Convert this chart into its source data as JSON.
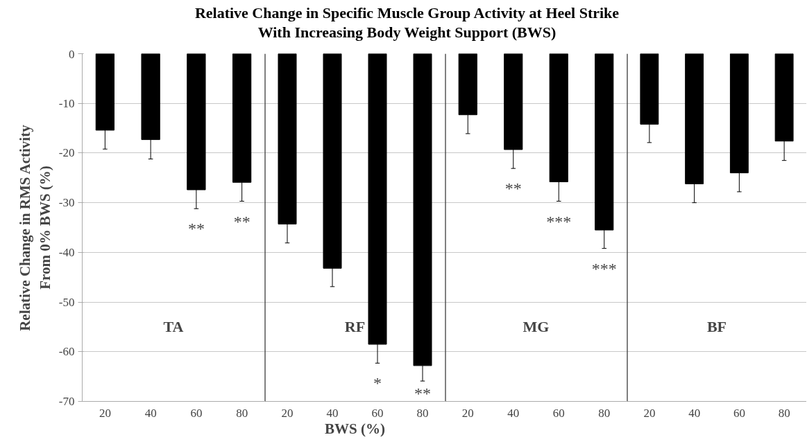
{
  "chart_data": [
    {
      "type": "bar",
      "title": "Relative Change in Specific Muscle Group Activity at Heel Strike\nWith Increasing Body Weight Support (BWS)",
      "ylabel": "Relative Change in RMS Activity\nFrom 0% BWS (%)",
      "categories": [
        "20",
        "40",
        "60",
        "80"
      ],
      "series": [
        {
          "color": "#000000",
          "values": [
            -15.4,
            -17.3,
            -27.4,
            -25.9
          ],
          "value_labels": [
            null,
            null,
            "**",
            "**"
          ],
          "errors": [
            [
              -19.2,
              -15.4
            ],
            [
              -21.2,
              -17.3
            ],
            [
              -31.2,
              -27.4
            ],
            [
              -29.7,
              -25.9
            ]
          ]
        }
      ],
      "ylim": [
        -70,
        0
      ],
      "yticks": [
        0,
        -10,
        -20,
        -30,
        -40,
        -50,
        -60,
        -70
      ],
      "grid": "y",
      "annotations": [
        "TA"
      ]
    },
    {
      "type": "bar",
      "categories": [
        "20",
        "40",
        "60",
        "80"
      ],
      "xlabel": "BWS (%)",
      "series": [
        {
          "color": "#000000",
          "values": [
            -34.3,
            -43.2,
            -58.5,
            -62.8
          ],
          "value_labels": [
            null,
            null,
            "*",
            "**"
          ],
          "errors": [
            [
              -38.1,
              -34.3
            ],
            [
              -46.9,
              -43.2
            ],
            [
              -62.3,
              -58.5
            ],
            [
              -65.9,
              -62.8
            ]
          ]
        }
      ],
      "ylim": [
        -70,
        0
      ],
      "yticks": [
        0,
        -10,
        -20,
        -30,
        -40,
        -50,
        -60,
        -70
      ],
      "grid": "y",
      "tick_labels": "x",
      "annotations": [
        "RF"
      ]
    },
    {
      "type": "bar",
      "categories": [
        "20",
        "40",
        "60",
        "80"
      ],
      "series": [
        {
          "color": "#000000",
          "values": [
            -12.3,
            -19.3,
            -25.8,
            -35.5
          ],
          "value_labels": [
            null,
            "**",
            "***",
            "***"
          ],
          "errors": [
            [
              -16.1,
              -12.3
            ],
            [
              -23.1,
              -19.3
            ],
            [
              -29.7,
              -25.8
            ],
            [
              -39.2,
              -35.5
            ]
          ]
        }
      ],
      "ylim": [
        -70,
        0
      ],
      "yticks": [
        0,
        -10,
        -20,
        -30,
        -40,
        -50,
        -60,
        -70
      ],
      "grid": "y",
      "tick_labels": "x",
      "annotations": [
        "MG"
      ]
    },
    {
      "type": "bar",
      "categories": [
        "20",
        "40",
        "60",
        "80"
      ],
      "series": [
        {
          "color": "#000000",
          "values": [
            -14.2,
            -26.2,
            -24.0,
            -17.6
          ],
          "errors": [
            [
              -17.9,
              -14.2
            ],
            [
              -30.0,
              -26.2
            ],
            [
              -27.8,
              -24.0
            ],
            [
              -21.5,
              -17.6
            ]
          ]
        }
      ],
      "ylim": [
        -70,
        0
      ],
      "yticks": [
        0,
        -10,
        -20,
        -30,
        -40,
        -50,
        -60,
        -70
      ],
      "grid": "y",
      "tick_labels": "x",
      "annotations": [
        "BF"
      ]
    }
  ]
}
